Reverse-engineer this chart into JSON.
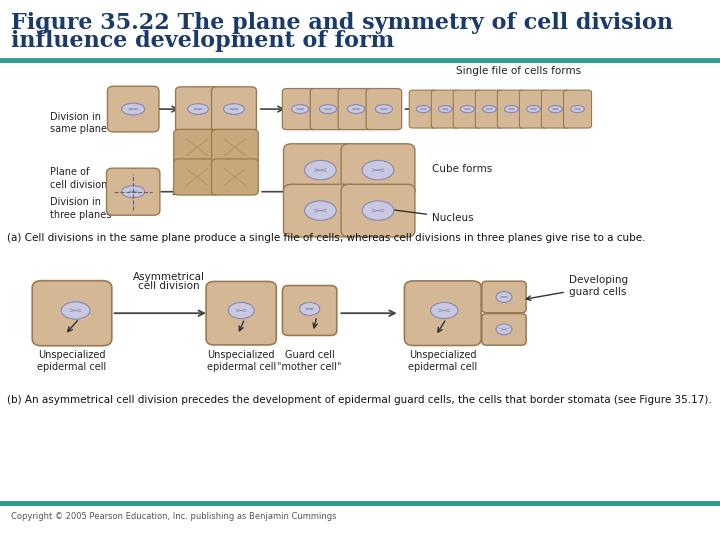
{
  "title_line1": "Figure 35.22 The plane and symmetry of cell division",
  "title_line2": "influence development of form",
  "title_color": "#1a3a6b",
  "title_fontsize": 16,
  "bg_color": "#ffffff",
  "teal_color": "#2a9d8f",
  "section_a_caption": "(a) Cell divisions in the same plane produce a single file of cells, whereas cell divisions in three planes give rise to a cube.",
  "section_b_caption": "(b) An asymmetrical cell division precedes the development of epidermal guard cells, the cells that border stomata (see Figure 35.17).",
  "copyright": "Copyright © 2005 Pearson Education, Inc. publishing as Benjamin Cummings",
  "label_division_same": "Division in\nsame plane",
  "label_single_file": "Single file of cells forms",
  "label_plane_division": "Plane of\ncell division",
  "label_division_three": "Division in\nthree planes",
  "label_cube": "Cube forms",
  "label_nucleus": "Nucleus",
  "label_asymmetrical": "Asymmetrical",
  "label_cell_division": "cell division",
  "label_developing": "Developing\nguard cells",
  "label_unspec1": "Unspecialized\nepidermal cell",
  "label_unspec2": "Unspecialized\nepidermal cell",
  "label_guard_mother": "Guard cell\n\"mother cell\"",
  "label_unspec3": "Unspecialized\nepidermal cell",
  "cell_color": "#d4b896",
  "cell_color2": "#c8a87a",
  "cell_edge": "#9a7a50",
  "nucleus_color_fill": "#c8c8e0",
  "nucleus_color_edge": "#8888b0",
  "arrow_color": "#333333",
  "caption_bold_color": "#111111",
  "caption_normal_color": "#111111"
}
